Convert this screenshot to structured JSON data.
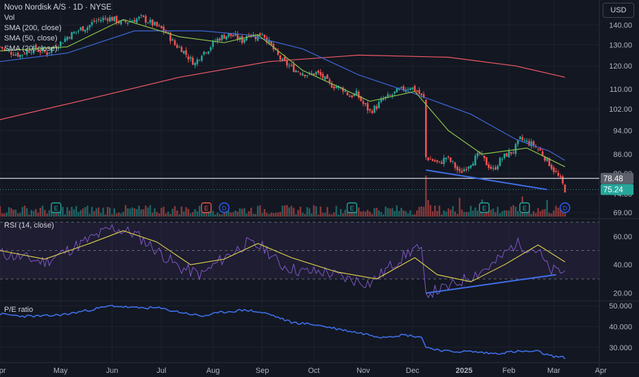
{
  "header": {
    "title": "Novo Nordisk A/S · 1D · NYSE",
    "indicators": [
      "Vol",
      "SMA (200, close)",
      "SMA (50, close)",
      "SMA (20, close)"
    ],
    "currency_button": "USD"
  },
  "rsi_pane": {
    "label": "RSI (14, close)"
  },
  "pe_pane": {
    "label": "P/E ratio"
  },
  "colors": {
    "background": "#131722",
    "up": "#26a69a",
    "down": "#ef5350",
    "sma200": "#f05a66",
    "sma50": "#3d68d8",
    "sma20": "#8bc34a",
    "rsi": "#7e57c2",
    "rsi_ma": "#e6d84a",
    "trendline": "#3f6fe8",
    "pe": "#3d6fe8"
  },
  "chart_data": [
    {
      "type": "candlestick",
      "name": "price",
      "x_ticks": [
        "Apr",
        "May",
        "Jun",
        "Jul",
        "Aug",
        "Sep",
        "Oct",
        "Nov",
        "Dec",
        "2025",
        "Feb",
        "Mar",
        "Apr"
      ],
      "y_ticks": [
        69.0,
        74.0,
        80.0,
        86.0,
        94.0,
        102.0,
        110.0,
        120.0,
        130.0,
        140.0
      ],
      "y_tick_labels": [
        "69.00",
        "74.00",
        "80.00",
        "86.00",
        "94.00",
        "102.00",
        "110.00",
        "120.00",
        "130.00",
        "140.00"
      ],
      "ylim": [
        69,
        150
      ],
      "scale": "log",
      "price_labels": [
        {
          "value": 78.48,
          "text": "78.48",
          "role": "last-close"
        },
        {
          "value": 75.24,
          "text": "75.24",
          "role": "current"
        }
      ],
      "close_series": [
        {
          "t": 0,
          "v": 129
        },
        {
          "t": 3,
          "v": 127
        },
        {
          "t": 6,
          "v": 126
        },
        {
          "t": 9,
          "v": 125
        },
        {
          "t": 12,
          "v": 127
        },
        {
          "t": 15,
          "v": 128
        },
        {
          "t": 18,
          "v": 127
        },
        {
          "t": 21,
          "v": 126
        },
        {
          "t": 24,
          "v": 129
        },
        {
          "t": 27,
          "v": 131
        },
        {
          "t": 30,
          "v": 134
        },
        {
          "t": 33,
          "v": 136
        },
        {
          "t": 36,
          "v": 138
        },
        {
          "t": 39,
          "v": 139
        },
        {
          "t": 42,
          "v": 142
        },
        {
          "t": 45,
          "v": 143
        },
        {
          "t": 48,
          "v": 144
        },
        {
          "t": 51,
          "v": 143
        },
        {
          "t": 54,
          "v": 141
        },
        {
          "t": 57,
          "v": 142
        },
        {
          "t": 60,
          "v": 143
        },
        {
          "t": 63,
          "v": 144
        },
        {
          "t": 66,
          "v": 142
        },
        {
          "t": 69,
          "v": 140
        },
        {
          "t": 72,
          "v": 138
        },
        {
          "t": 75,
          "v": 135
        },
        {
          "t": 78,
          "v": 130
        },
        {
          "t": 81,
          "v": 128
        },
        {
          "t": 84,
          "v": 124
        },
        {
          "t": 87,
          "v": 121
        },
        {
          "t": 90,
          "v": 126
        },
        {
          "t": 93,
          "v": 128
        },
        {
          "t": 96,
          "v": 132
        },
        {
          "t": 99,
          "v": 134
        },
        {
          "t": 102,
          "v": 135
        },
        {
          "t": 105,
          "v": 134
        },
        {
          "t": 108,
          "v": 132
        },
        {
          "t": 111,
          "v": 136
        },
        {
          "t": 114,
          "v": 134
        },
        {
          "t": 117,
          "v": 136
        },
        {
          "t": 120,
          "v": 131
        },
        {
          "t": 123,
          "v": 126
        },
        {
          "t": 126,
          "v": 122
        },
        {
          "t": 129,
          "v": 120
        },
        {
          "t": 132,
          "v": 118
        },
        {
          "t": 135,
          "v": 117
        },
        {
          "t": 138,
          "v": 116
        },
        {
          "t": 141,
          "v": 117
        },
        {
          "t": 144,
          "v": 115
        },
        {
          "t": 147,
          "v": 112
        },
        {
          "t": 150,
          "v": 111
        },
        {
          "t": 153,
          "v": 110
        },
        {
          "t": 156,
          "v": 107
        },
        {
          "t": 159,
          "v": 108
        },
        {
          "t": 162,
          "v": 104
        },
        {
          "t": 165,
          "v": 101
        },
        {
          "t": 168,
          "v": 103
        },
        {
          "t": 171,
          "v": 106
        },
        {
          "t": 174,
          "v": 107
        },
        {
          "t": 177,
          "v": 109
        },
        {
          "t": 180,
          "v": 110
        },
        {
          "t": 183,
          "v": 111
        },
        {
          "t": 186,
          "v": 109
        },
        {
          "t": 189,
          "v": 106
        },
        {
          "t": 190,
          "v": 85
        },
        {
          "t": 193,
          "v": 84
        },
        {
          "t": 196,
          "v": 83
        },
        {
          "t": 199,
          "v": 85
        },
        {
          "t": 202,
          "v": 83
        },
        {
          "t": 205,
          "v": 80
        },
        {
          "t": 208,
          "v": 82
        },
        {
          "t": 211,
          "v": 84
        },
        {
          "t": 214,
          "v": 86
        },
        {
          "t": 217,
          "v": 83
        },
        {
          "t": 220,
          "v": 81
        },
        {
          "t": 223,
          "v": 84
        },
        {
          "t": 226,
          "v": 86
        },
        {
          "t": 229,
          "v": 87
        },
        {
          "t": 232,
          "v": 91
        },
        {
          "t": 235,
          "v": 90
        },
        {
          "t": 238,
          "v": 89
        },
        {
          "t": 241,
          "v": 87
        },
        {
          "t": 244,
          "v": 84
        },
        {
          "t": 247,
          "v": 81
        },
        {
          "t": 250,
          "v": 78
        },
        {
          "t": 252,
          "v": 75.24
        }
      ],
      "series": [
        {
          "name": "SMA (200, close)",
          "values": [
            {
              "t": 0,
              "v": 98
            },
            {
              "t": 40,
              "v": 106
            },
            {
              "t": 80,
              "v": 115
            },
            {
              "t": 120,
              "v": 122
            },
            {
              "t": 160,
              "v": 125
            },
            {
              "t": 200,
              "v": 124
            },
            {
              "t": 230,
              "v": 120
            },
            {
              "t": 252,
              "v": 115
            }
          ]
        },
        {
          "name": "SMA (50, close)",
          "values": [
            {
              "t": 0,
              "v": 122
            },
            {
              "t": 30,
              "v": 126
            },
            {
              "t": 60,
              "v": 137
            },
            {
              "t": 90,
              "v": 137
            },
            {
              "t": 110,
              "v": 135
            },
            {
              "t": 135,
              "v": 128
            },
            {
              "t": 160,
              "v": 116
            },
            {
              "t": 185,
              "v": 108
            },
            {
              "t": 210,
              "v": 100
            },
            {
              "t": 230,
              "v": 91
            },
            {
              "t": 245,
              "v": 87
            },
            {
              "t": 252,
              "v": 84
            }
          ]
        },
        {
          "name": "SMA (20, close)",
          "values": [
            {
              "t": 0,
              "v": 127
            },
            {
              "t": 30,
              "v": 129
            },
            {
              "t": 55,
              "v": 143
            },
            {
              "t": 80,
              "v": 134
            },
            {
              "t": 100,
              "v": 131
            },
            {
              "t": 115,
              "v": 135
            },
            {
              "t": 135,
              "v": 118
            },
            {
              "t": 165,
              "v": 105
            },
            {
              "t": 185,
              "v": 109
            },
            {
              "t": 200,
              "v": 94
            },
            {
              "t": 215,
              "v": 86
            },
            {
              "t": 235,
              "v": 88
            },
            {
              "t": 252,
              "v": 82
            }
          ]
        }
      ],
      "horizontal_lines": [
        78.48
      ],
      "trendline": [
        {
          "t": 190,
          "v": 81
        },
        {
          "t": 244,
          "v": 75.24
        }
      ],
      "event_markers": [
        {
          "t": 25,
          "text": "E"
        },
        {
          "t": 92,
          "text": "E"
        },
        {
          "t": 100,
          "text": "D"
        },
        {
          "t": 157,
          "text": "E"
        },
        {
          "t": 216,
          "text": "E"
        },
        {
          "t": 234,
          "text": "E"
        },
        {
          "t": 252,
          "text": "D"
        }
      ]
    },
    {
      "type": "line",
      "name": "rsi",
      "y_ticks": [
        20.0,
        40.0,
        60.0
      ],
      "y_tick_labels": [
        "20.00",
        "40.00",
        "60.00"
      ],
      "ylim": [
        15,
        72
      ],
      "bands": [
        30,
        50,
        70
      ],
      "series": [
        {
          "name": "RSI (14, close)",
          "values": [
            {
              "t": 0,
              "v": 48
            },
            {
              "t": 10,
              "v": 45
            },
            {
              "t": 20,
              "v": 42
            },
            {
              "t": 30,
              "v": 50
            },
            {
              "t": 40,
              "v": 58
            },
            {
              "t": 50,
              "v": 66
            },
            {
              "t": 60,
              "v": 62
            },
            {
              "t": 70,
              "v": 50
            },
            {
              "t": 80,
              "v": 38
            },
            {
              "t": 90,
              "v": 33
            },
            {
              "t": 100,
              "v": 45
            },
            {
              "t": 110,
              "v": 55
            },
            {
              "t": 118,
              "v": 52
            },
            {
              "t": 125,
              "v": 40
            },
            {
              "t": 135,
              "v": 35
            },
            {
              "t": 145,
              "v": 35
            },
            {
              "t": 155,
              "v": 30
            },
            {
              "t": 165,
              "v": 27
            },
            {
              "t": 175,
              "v": 40
            },
            {
              "t": 185,
              "v": 52
            },
            {
              "t": 188,
              "v": 48
            },
            {
              "t": 190,
              "v": 20
            },
            {
              "t": 200,
              "v": 24
            },
            {
              "t": 210,
              "v": 32
            },
            {
              "t": 220,
              "v": 40
            },
            {
              "t": 230,
              "v": 55
            },
            {
              "t": 240,
              "v": 50
            },
            {
              "t": 245,
              "v": 36
            },
            {
              "t": 252,
              "v": 35
            }
          ]
        },
        {
          "name": "RSI MA",
          "values": [
            {
              "t": 0,
              "v": 50
            },
            {
              "t": 20,
              "v": 44
            },
            {
              "t": 40,
              "v": 55
            },
            {
              "t": 55,
              "v": 64
            },
            {
              "t": 70,
              "v": 56
            },
            {
              "t": 85,
              "v": 40
            },
            {
              "t": 100,
              "v": 44
            },
            {
              "t": 115,
              "v": 55
            },
            {
              "t": 130,
              "v": 45
            },
            {
              "t": 150,
              "v": 35
            },
            {
              "t": 168,
              "v": 30
            },
            {
              "t": 185,
              "v": 45
            },
            {
              "t": 195,
              "v": 33
            },
            {
              "t": 210,
              "v": 28
            },
            {
              "t": 225,
              "v": 40
            },
            {
              "t": 240,
              "v": 54
            },
            {
              "t": 252,
              "v": 42
            }
          ]
        }
      ],
      "trendline": [
        {
          "t": 190,
          "v": 20
        },
        {
          "t": 248,
          "v": 33
        }
      ]
    },
    {
      "type": "line",
      "name": "pe",
      "y_ticks": [
        30.0,
        40.0,
        50.0
      ],
      "y_tick_labels": [
        "30.000",
        "40.000",
        "50.000"
      ],
      "ylim": [
        23,
        52
      ],
      "series": [
        {
          "name": "P/E ratio",
          "values": [
            {
              "t": 0,
              "v": 46
            },
            {
              "t": 10,
              "v": 45
            },
            {
              "t": 20,
              "v": 45
            },
            {
              "t": 30,
              "v": 46
            },
            {
              "t": 40,
              "v": 48
            },
            {
              "t": 50,
              "v": 50
            },
            {
              "t": 60,
              "v": 49
            },
            {
              "t": 70,
              "v": 49
            },
            {
              "t": 80,
              "v": 47
            },
            {
              "t": 90,
              "v": 45
            },
            {
              "t": 100,
              "v": 47
            },
            {
              "t": 110,
              "v": 48
            },
            {
              "t": 120,
              "v": 46
            },
            {
              "t": 130,
              "v": 42
            },
            {
              "t": 140,
              "v": 41
            },
            {
              "t": 150,
              "v": 39
            },
            {
              "t": 160,
              "v": 37
            },
            {
              "t": 170,
              "v": 35
            },
            {
              "t": 180,
              "v": 36
            },
            {
              "t": 188,
              "v": 35
            },
            {
              "t": 190,
              "v": 30
            },
            {
              "t": 200,
              "v": 28
            },
            {
              "t": 210,
              "v": 28
            },
            {
              "t": 220,
              "v": 27
            },
            {
              "t": 230,
              "v": 28
            },
            {
              "t": 240,
              "v": 28
            },
            {
              "t": 245,
              "v": 26
            },
            {
              "t": 252,
              "v": 25
            }
          ]
        }
      ]
    }
  ]
}
